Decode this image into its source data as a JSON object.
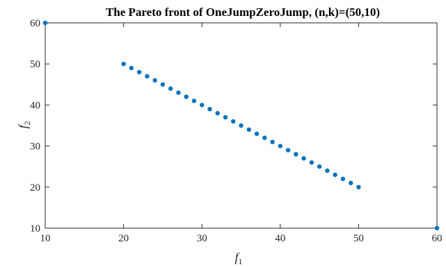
{
  "chart_data": {
    "type": "scatter",
    "title": "The Pareto front of OneJumpZeroJump, (n,k)=(50,10)",
    "xlabel": {
      "base": "f",
      "sub": "1"
    },
    "ylabel": {
      "base": "f",
      "sub": "2"
    },
    "xlim": [
      10,
      60
    ],
    "ylim": [
      10,
      60
    ],
    "xticks": [
      10,
      20,
      30,
      40,
      50,
      60
    ],
    "yticks": [
      10,
      20,
      30,
      40,
      50,
      60
    ],
    "grid": false,
    "marker_color": "#0072BD",
    "points": [
      [
        10,
        60
      ],
      [
        20,
        50
      ],
      [
        21,
        49
      ],
      [
        22,
        48
      ],
      [
        23,
        47
      ],
      [
        24,
        46
      ],
      [
        25,
        45
      ],
      [
        26,
        44
      ],
      [
        27,
        43
      ],
      [
        28,
        42
      ],
      [
        29,
        41
      ],
      [
        30,
        40
      ],
      [
        31,
        39
      ],
      [
        32,
        38
      ],
      [
        33,
        37
      ],
      [
        34,
        36
      ],
      [
        35,
        35
      ],
      [
        36,
        34
      ],
      [
        37,
        33
      ],
      [
        38,
        32
      ],
      [
        39,
        31
      ],
      [
        40,
        30
      ],
      [
        41,
        29
      ],
      [
        42,
        28
      ],
      [
        43,
        27
      ],
      [
        44,
        26
      ],
      [
        45,
        25
      ],
      [
        46,
        24
      ],
      [
        47,
        23
      ],
      [
        48,
        22
      ],
      [
        49,
        21
      ],
      [
        50,
        20
      ],
      [
        60,
        10
      ]
    ]
  }
}
